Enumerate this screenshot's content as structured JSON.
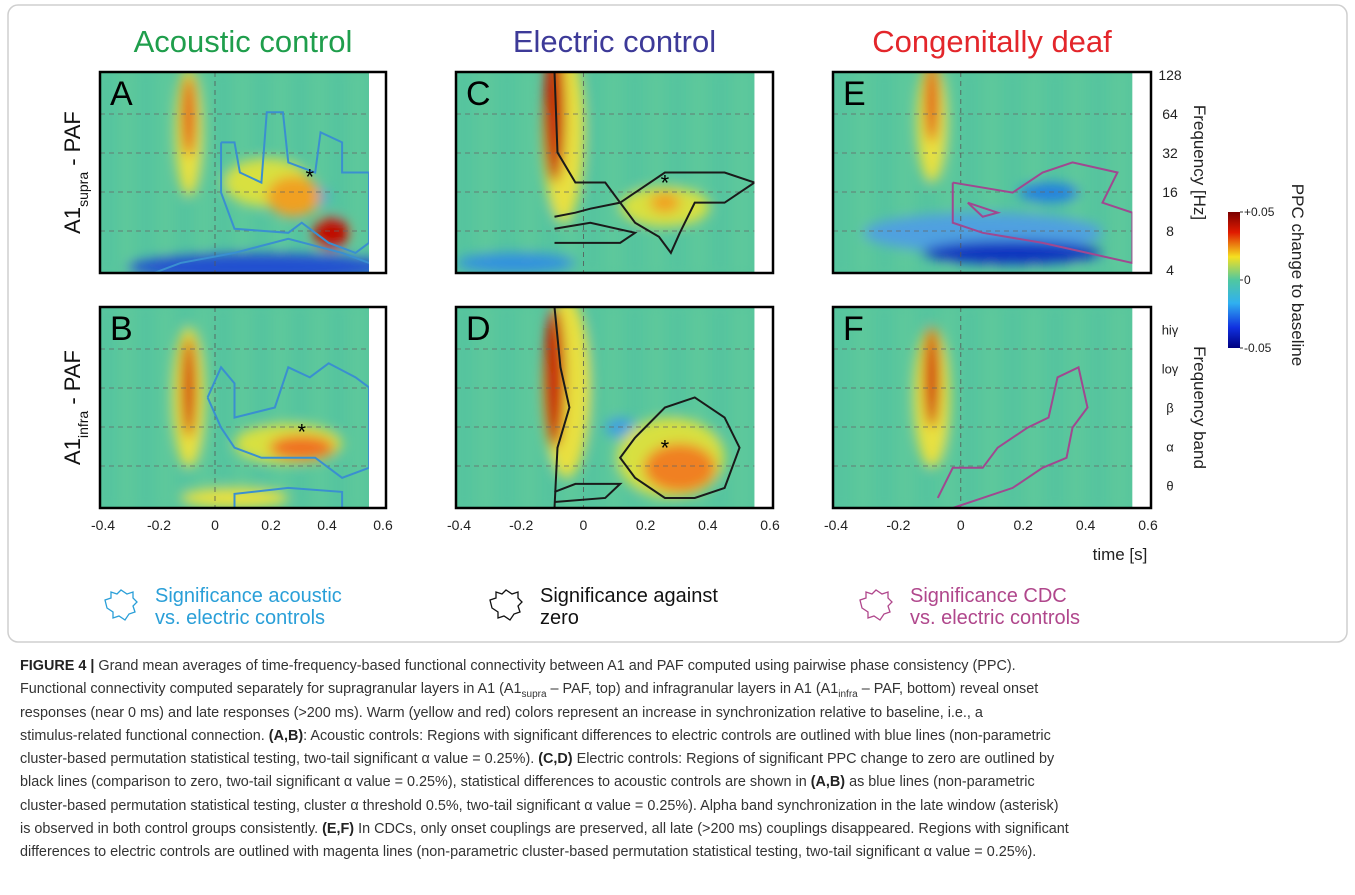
{
  "column_titles": [
    {
      "text": "Acoustic control",
      "color": "#1f9e4c"
    },
    {
      "text": "Electric control",
      "color": "#3d3a98"
    },
    {
      "text": "Congenitally deaf",
      "color": "#e3262b"
    }
  ],
  "row_labels": [
    [
      {
        "text": "A1"
      },
      {
        "text": "supra",
        "style": "sub"
      },
      {
        "text": " - PAF"
      }
    ],
    [
      {
        "text": "A1"
      },
      {
        "text": "infra",
        "style": "sub"
      },
      {
        "text": " - PAF"
      }
    ]
  ],
  "panels": [
    [
      {
        "letter": "A",
        "marker": "*"
      },
      {
        "letter": "C",
        "marker": "*"
      },
      {
        "letter": "E"
      }
    ],
    [
      {
        "letter": "B",
        "marker": "*"
      },
      {
        "letter": "D",
        "marker": "*"
      },
      {
        "letter": "F"
      }
    ]
  ],
  "time_axis": {
    "lim": [
      -0.4,
      0.6
    ],
    "ticks": [
      -0.4,
      -0.2,
      0,
      0.2,
      0.4,
      0.6
    ],
    "label": "time [s]"
  },
  "frequency_axis": {
    "lim": [
      4,
      128
    ],
    "log": true,
    "ticks": [
      4,
      8,
      16,
      32,
      64,
      128
    ],
    "label": "Frequency [Hz]"
  },
  "band_axis": {
    "bands": [
      "θ",
      "α",
      "β",
      "loγ",
      "hiγ"
    ],
    "label": "Frequency band"
  },
  "colorbar": {
    "lim": [
      -0.05,
      0.05
    ],
    "ticks": [
      {
        "value": 0.05,
        "label": "+0.05"
      },
      0,
      {
        "value": -0.05,
        "label": "-0.05"
      }
    ],
    "label": "PPC change to baseline"
  },
  "legend": [
    {
      "lines": [
        "Significance acoustic",
        "vs. electric controls"
      ],
      "color": "#2a9fd8"
    },
    {
      "lines": [
        "Significance against",
        "zero"
      ],
      "color": "#111111"
    },
    {
      "lines": [
        "Significance CDC",
        "vs. electric controls"
      ],
      "color": "#b0478c"
    }
  ],
  "caption": [
    [
      {
        "text": "FIGURE 4 |",
        "style": "bold"
      },
      {
        "text": " Grand mean averages of time-frequency-based functional connectivity between A1 and PAF computed using pairwise phase consistency (PPC)."
      }
    ],
    [
      {
        "text": "Functional connectivity computed separately for supragranular layers in A1 (A1"
      },
      {
        "text": "supra",
        "style": "sub"
      },
      {
        "text": " – PAF, top) and infragranular layers in A1 (A1"
      },
      {
        "text": "infra",
        "style": "sub"
      },
      {
        "text": " – PAF, bottom) reveal onset"
      }
    ],
    [
      {
        "text": "responses (near 0 ms) and late responses (>200 ms). Warm (yellow and red) colors represent an increase in synchronization relative to baseline, i.e., a"
      }
    ],
    [
      {
        "text": "stimulus-related functional connection. "
      },
      {
        "text": "(A,B)",
        "style": "bold"
      },
      {
        "text": ": Acoustic controls: Regions with significant differences to electric controls are outlined with blue lines (non-parametric"
      }
    ],
    [
      {
        "text": "cluster-based permutation statistical testing, two-tail significant α value = 0.25%). "
      },
      {
        "text": "(C,D)",
        "style": "bold"
      },
      {
        "text": " Electric controls: Regions of significant PPC change to zero are outlined by"
      }
    ],
    [
      {
        "text": "black lines (comparison to zero, two-tail significant α value = 0.25%), statistical differences to acoustic controls are shown in "
      },
      {
        "text": "(A,B)",
        "style": "bold"
      },
      {
        "text": " as blue lines (non-parametric"
      }
    ],
    [
      {
        "text": "cluster-based permutation statistical testing, cluster α threshold 0.5%, two-tail significant α value = 0.25%). Alpha band synchronization in the late window (asterisk)"
      }
    ],
    [
      {
        "text": "is observed in both control groups consistently. "
      },
      {
        "text": "(E,F)",
        "style": "bold"
      },
      {
        "text": " In CDCs, only onset couplings are preserved, all late (>200 ms) couplings disappeared. Regions with significant"
      }
    ],
    [
      {
        "text": "differences to electric controls are outlined with magenta lines (non-parametric cluster-based permutation statistical testing, two-tail significant α value = 0.25%)."
      }
    ]
  ]
}
